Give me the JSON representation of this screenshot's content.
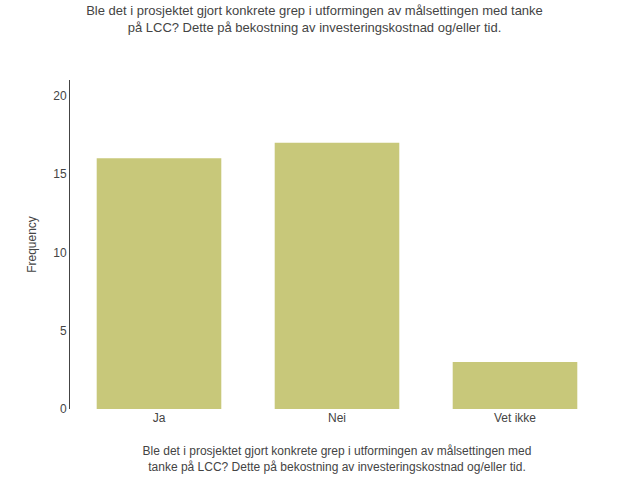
{
  "chart_data": {
    "type": "bar",
    "title": "Ble det i prosjektet gjort konkrete grep i utformingen av målsettingen med tanke\npå LCC? Dette på bekostning av investeringskostnad og/eller tid.",
    "xlabel": "Ble det i prosjektet gjort konkrete grep i utformingen av målsettingen med\ntanke på LCC? Dette på bekostning av investeringskostnad og/eller tid.",
    "ylabel": "Frequency",
    "categories": [
      "Ja",
      "Nei",
      "Vet ikke"
    ],
    "values": [
      16,
      17,
      3
    ],
    "color": "#C8C87A",
    "ylim": [
      0,
      21
    ],
    "yticks": [
      0,
      5,
      10,
      15,
      20
    ],
    "grid": false
  }
}
